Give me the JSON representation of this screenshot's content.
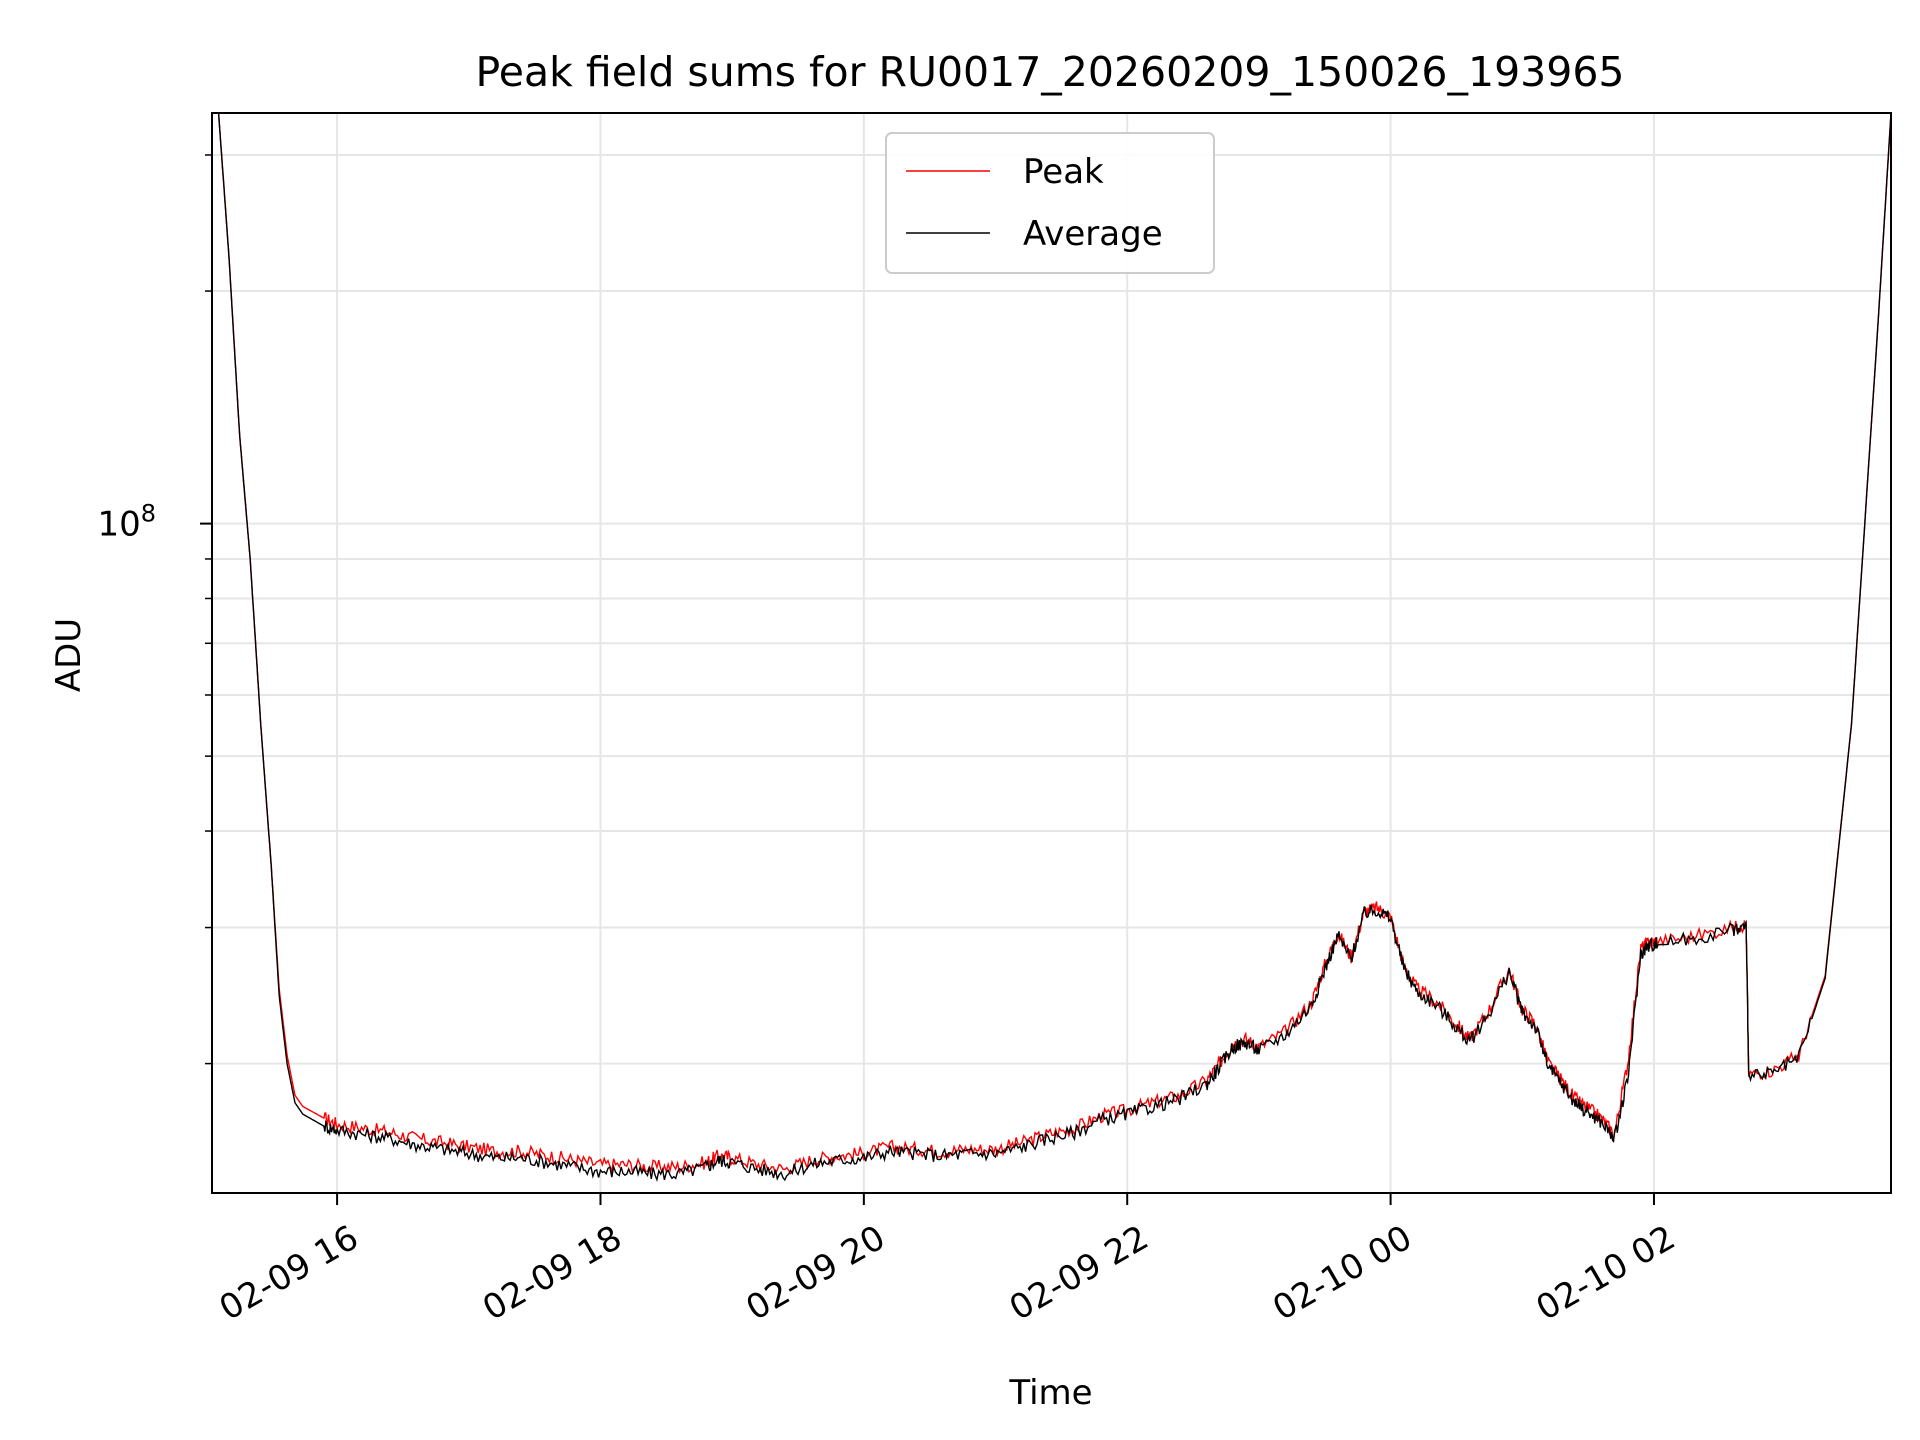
{
  "chart_data": {
    "type": "line",
    "title": "Peak field sums for RU0017_20260209_150026_193965",
    "xlabel": "Time",
    "ylabel": "ADU",
    "yscale": "log",
    "ylim": [
      13600000,
      340000000
    ],
    "xlim_hours": [
      15.05,
      27.8
    ],
    "grid": true,
    "legend_position": "upper-center",
    "x_tick_labels": [
      "02-09 16",
      "02-09 18",
      "02-09 20",
      "02-09 22",
      "02-10 00",
      "02-10 02"
    ],
    "x_tick_hours": [
      16,
      18,
      20,
      22,
      24,
      26
    ],
    "y_major_ticks": [
      {
        "value": 100000000,
        "base": "10",
        "exp": "8"
      }
    ],
    "y_minor_ticks": [
      20000000,
      30000000,
      40000000,
      50000000,
      60000000,
      70000000,
      80000000,
      90000000,
      200000000,
      300000000
    ],
    "series": [
      {
        "name": "Peak",
        "color": "#ff0000",
        "x_hours": [
          15.1,
          15.18,
          15.26,
          15.34,
          15.42,
          15.5,
          15.56,
          15.62,
          15.68,
          15.74,
          15.82,
          15.9,
          16.0,
          16.2,
          16.4,
          16.6,
          16.8,
          17.0,
          17.2,
          17.4,
          17.6,
          17.8,
          18.0,
          18.2,
          18.4,
          18.6,
          18.8,
          18.9,
          19.0,
          19.2,
          19.4,
          19.6,
          19.8,
          20.0,
          20.2,
          20.4,
          20.6,
          20.8,
          21.0,
          21.2,
          21.4,
          21.6,
          21.8,
          22.0,
          22.2,
          22.4,
          22.6,
          22.7,
          22.8,
          22.9,
          23.0,
          23.2,
          23.4,
          23.5,
          23.6,
          23.7,
          23.8,
          23.9,
          24.0,
          24.1,
          24.2,
          24.35,
          24.5,
          24.6,
          24.75,
          24.9,
          25.0,
          25.1,
          25.2,
          25.3,
          25.4,
          25.5,
          25.6,
          25.7,
          25.8,
          25.9,
          25.97,
          26.03,
          26.3,
          26.6,
          26.7,
          26.72,
          26.9,
          27.1,
          27.3,
          27.5,
          27.7,
          27.8
        ],
        "values": [
          340000000,
          220000000,
          130000000,
          90000000,
          55000000,
          36000000,
          25000000,
          20500000,
          18200000,
          17600000,
          17300000,
          17000000,
          16700000,
          16500000,
          16300000,
          16000000,
          15800000,
          15600000,
          15400000,
          15400000,
          15200000,
          15000000,
          14800000,
          14800000,
          14700000,
          14700000,
          14900000,
          15200000,
          15100000,
          14800000,
          14600000,
          15000000,
          15200000,
          15300000,
          15600000,
          15500000,
          15400000,
          15500000,
          15500000,
          15800000,
          16200000,
          16500000,
          17100000,
          17400000,
          17800000,
          18200000,
          19000000,
          20000000,
          21200000,
          21500000,
          21000000,
          22000000,
          24000000,
          26800000,
          29500000,
          27500000,
          31500000,
          31800000,
          31000000,
          26800000,
          25000000,
          24000000,
          22500000,
          21500000,
          23500000,
          26500000,
          23500000,
          22500000,
          20000000,
          19000000,
          18000000,
          17500000,
          17000000,
          16200000,
          20000000,
          28200000,
          28700000,
          28800000,
          29200000,
          30000000,
          30300000,
          19400000,
          19600000,
          20500000,
          26000000,
          55000000,
          180000000,
          340000000
        ]
      },
      {
        "name": "Average",
        "color": "#000000",
        "x_hours": [
          15.1,
          15.18,
          15.26,
          15.34,
          15.42,
          15.5,
          15.56,
          15.62,
          15.68,
          15.74,
          15.82,
          15.9,
          16.0,
          16.2,
          16.4,
          16.6,
          16.8,
          17.0,
          17.2,
          17.4,
          17.6,
          17.8,
          18.0,
          18.2,
          18.4,
          18.6,
          18.8,
          18.9,
          19.0,
          19.2,
          19.4,
          19.6,
          19.8,
          20.0,
          20.2,
          20.4,
          20.6,
          20.8,
          21.0,
          21.2,
          21.4,
          21.6,
          21.8,
          22.0,
          22.2,
          22.4,
          22.6,
          22.7,
          22.8,
          22.9,
          23.0,
          23.2,
          23.4,
          23.5,
          23.6,
          23.7,
          23.8,
          23.9,
          24.0,
          24.1,
          24.2,
          24.35,
          24.5,
          24.6,
          24.75,
          24.9,
          25.0,
          25.1,
          25.2,
          25.3,
          25.4,
          25.5,
          25.6,
          25.7,
          25.8,
          25.9,
          25.97,
          26.03,
          26.3,
          26.6,
          26.7,
          26.72,
          26.9,
          27.1,
          27.3,
          27.5,
          27.7,
          27.8
        ],
        "values": [
          340000000,
          220000000,
          130000000,
          90000000,
          55000000,
          36000000,
          24500000,
          20000000,
          17800000,
          17200000,
          16900000,
          16600000,
          16400000,
          16200000,
          16000000,
          15700000,
          15500000,
          15300000,
          15100000,
          15100000,
          14900000,
          14700000,
          14500000,
          14500000,
          14400000,
          14400000,
          14700000,
          15000000,
          14900000,
          14600000,
          14400000,
          14800000,
          15000000,
          15100000,
          15400000,
          15300000,
          15200000,
          15300000,
          15300000,
          15600000,
          16000000,
          16300000,
          16900000,
          17200000,
          17600000,
          18000000,
          18800000,
          19800000,
          21000000,
          21300000,
          20800000,
          21800000,
          23800000,
          26500000,
          29300000,
          27300000,
          31300000,
          31600000,
          30800000,
          26600000,
          24800000,
          23800000,
          22300000,
          21300000,
          23300000,
          26300000,
          23300000,
          22300000,
          19800000,
          18800000,
          17800000,
          17300000,
          16800000,
          16000000,
          19000000,
          27800000,
          28500000,
          28600000,
          29000000,
          29800000,
          30100000,
          19200000,
          19400000,
          20300000,
          25800000,
          55000000,
          180000000,
          340000000
        ]
      }
    ]
  }
}
